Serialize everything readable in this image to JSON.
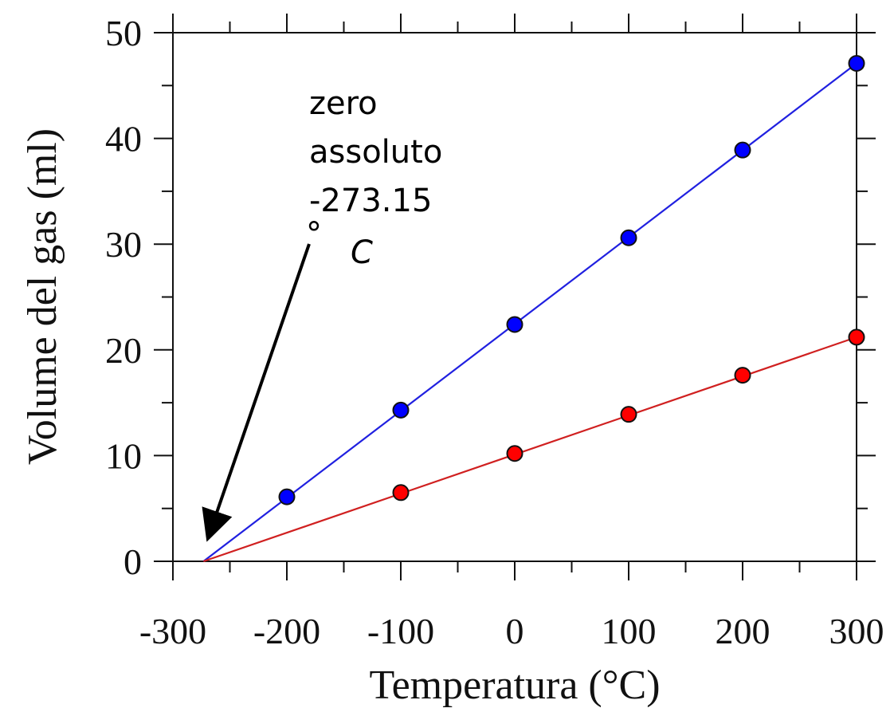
{
  "chart_data": {
    "type": "line",
    "title": "",
    "xlabel": "Temperatura (°C)",
    "ylabel": "Volume del gas (ml)",
    "xlim": [
      -300,
      300
    ],
    "ylim": [
      0,
      50
    ],
    "xticks": [
      -300,
      -200,
      -100,
      0,
      100,
      200,
      300
    ],
    "yticks": [
      0,
      10,
      20,
      30,
      40,
      50
    ],
    "xtick_labels": [
      "-300",
      "-200",
      "-100",
      "0",
      "100",
      "200",
      "300"
    ],
    "ytick_labels": [
      "0",
      "10",
      "20",
      "30",
      "40",
      "50"
    ],
    "grid": false,
    "series": [
      {
        "color": "#0000ff",
        "line_color": "#2020e0",
        "points": [
          [
            -200,
            6.1
          ],
          [
            -100,
            14.3
          ],
          [
            0,
            22.4
          ],
          [
            100,
            30.6
          ],
          [
            200,
            38.9
          ],
          [
            300,
            47.1
          ]
        ],
        "fit_line": [
          [
            -273.15,
            0
          ],
          [
            300,
            47.1
          ]
        ]
      },
      {
        "color": "#ff0000",
        "line_color": "#d02020",
        "points": [
          [
            -100,
            6.5
          ],
          [
            0,
            10.2
          ],
          [
            100,
            13.9
          ],
          [
            200,
            17.6
          ],
          [
            300,
            21.2
          ]
        ],
        "fit_line": [
          [
            -273.15,
            0
          ],
          [
            300,
            21.2
          ]
        ]
      }
    ],
    "annotation": {
      "lines": [
        "zero",
        "assoluto",
        "-273.15"
      ],
      "degree_symbol": "°",
      "unit": "C",
      "arrow_target": [
        -273.15,
        0
      ]
    }
  }
}
